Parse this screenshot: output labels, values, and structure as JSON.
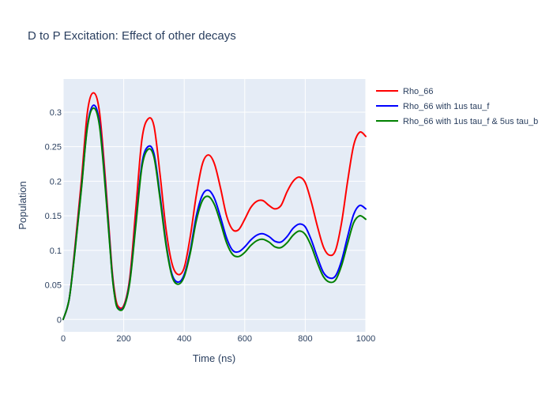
{
  "chart_data": {
    "type": "line",
    "title": "D to P Excitation: Effect of other decays",
    "xlabel": "Time (ns)",
    "ylabel": "Population",
    "xlim": [
      0,
      1000
    ],
    "ylim": [
      -0.018,
      0.348
    ],
    "x_ticks": [
      0,
      200,
      400,
      600,
      800,
      1000
    ],
    "x_tick_labels": [
      "0",
      "200",
      "400",
      "600",
      "800",
      "1000"
    ],
    "y_ticks": [
      0,
      0.05,
      0.1,
      0.15,
      0.2,
      0.25,
      0.3
    ],
    "y_tick_labels": [
      "0",
      "0.05",
      "0.1",
      "0.15",
      "0.2",
      "0.25",
      "0.3"
    ],
    "grid": true,
    "legend_position": "top-right-outside",
    "x": [
      0,
      20,
      40,
      60,
      80,
      100,
      120,
      140,
      160,
      170,
      180,
      200,
      220,
      240,
      260,
      280,
      300,
      320,
      340,
      360,
      380,
      400,
      420,
      440,
      460,
      480,
      500,
      520,
      540,
      560,
      580,
      600,
      620,
      640,
      660,
      680,
      700,
      720,
      740,
      760,
      780,
      800,
      820,
      840,
      860,
      880,
      900,
      920,
      940,
      960,
      980,
      1000
    ],
    "series": [
      {
        "name": "Rho_66",
        "color": "#ff0000",
        "values": [
          0.0,
          0.03,
          0.11,
          0.2,
          0.3,
          0.328,
          0.3,
          0.2,
          0.08,
          0.04,
          0.02,
          0.02,
          0.06,
          0.16,
          0.26,
          0.29,
          0.28,
          0.21,
          0.13,
          0.08,
          0.065,
          0.075,
          0.12,
          0.18,
          0.225,
          0.238,
          0.225,
          0.19,
          0.15,
          0.13,
          0.13,
          0.145,
          0.162,
          0.171,
          0.172,
          0.165,
          0.16,
          0.165,
          0.185,
          0.2,
          0.206,
          0.198,
          0.17,
          0.135,
          0.105,
          0.093,
          0.1,
          0.14,
          0.2,
          0.252,
          0.271,
          0.265
        ]
      },
      {
        "name": "Rho_66 with 1us tau_f",
        "color": "#0000ff",
        "values": [
          0.0,
          0.03,
          0.105,
          0.19,
          0.28,
          0.31,
          0.285,
          0.19,
          0.075,
          0.035,
          0.017,
          0.018,
          0.055,
          0.14,
          0.225,
          0.25,
          0.24,
          0.18,
          0.11,
          0.065,
          0.054,
          0.065,
          0.1,
          0.15,
          0.18,
          0.187,
          0.175,
          0.148,
          0.118,
          0.1,
          0.098,
          0.105,
          0.115,
          0.122,
          0.124,
          0.12,
          0.113,
          0.112,
          0.12,
          0.132,
          0.138,
          0.134,
          0.115,
          0.09,
          0.068,
          0.06,
          0.063,
          0.085,
          0.12,
          0.152,
          0.165,
          0.16
        ]
      },
      {
        "name": "Rho_66 with 1us tau_f & 5us tau_b",
        "color": "#008000",
        "values": [
          0.0,
          0.03,
          0.103,
          0.188,
          0.278,
          0.306,
          0.28,
          0.185,
          0.073,
          0.034,
          0.016,
          0.017,
          0.053,
          0.136,
          0.22,
          0.246,
          0.235,
          0.175,
          0.107,
          0.062,
          0.051,
          0.062,
          0.096,
          0.143,
          0.172,
          0.178,
          0.166,
          0.14,
          0.111,
          0.094,
          0.091,
          0.097,
          0.107,
          0.114,
          0.116,
          0.112,
          0.105,
          0.104,
          0.111,
          0.122,
          0.128,
          0.123,
          0.106,
          0.082,
          0.062,
          0.054,
          0.057,
          0.078,
          0.11,
          0.14,
          0.15,
          0.145
        ]
      }
    ]
  }
}
